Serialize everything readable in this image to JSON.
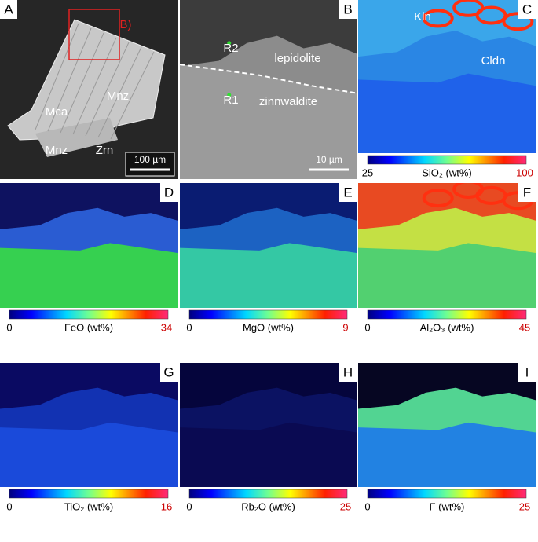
{
  "panels": [
    {
      "letter": "A",
      "labels": [
        "B)",
        "Mnz",
        "Mca",
        "Mnz",
        "Zrn"
      ],
      "scale_bar": "100 µm"
    },
    {
      "letter": "B",
      "labels": [
        "R2",
        "lepidolite",
        "R1",
        "zinnwaldite"
      ],
      "scale_bar": "10 µm"
    },
    {
      "letter": "C",
      "labels": [
        "Kln",
        "Cldn"
      ],
      "colorbar": {
        "min": 25,
        "max": 100,
        "label": "SiO₂ (wt%)"
      }
    },
    {
      "letter": "D",
      "colorbar": {
        "min": 0,
        "max": 34,
        "label": "FeO (wt%)"
      }
    },
    {
      "letter": "E",
      "colorbar": {
        "min": 0,
        "max": 9,
        "label": "MgO (wt%)"
      }
    },
    {
      "letter": "F",
      "colorbar": {
        "min": 0,
        "max": 45,
        "label": "Al₂O₃ (wt%)"
      }
    },
    {
      "letter": "G",
      "colorbar": {
        "min": 0,
        "max": 16,
        "label": "TiO₂ (wt%)"
      }
    },
    {
      "letter": "H",
      "colorbar": {
        "min": 0,
        "max": 25,
        "label": "Rb₂O (wt%)"
      }
    },
    {
      "letter": "I",
      "colorbar": {
        "min": 0,
        "max": 25,
        "label": "F (wt%)"
      }
    }
  ]
}
